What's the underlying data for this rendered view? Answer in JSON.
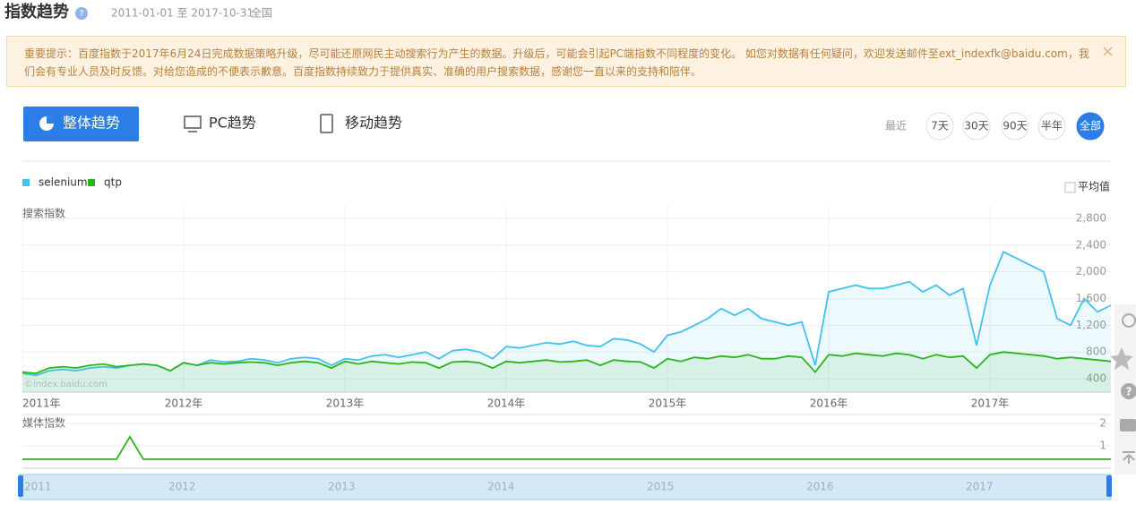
{
  "header": {
    "title": "指数趋势",
    "date_range": "2011-01-01 至 2017-10-31",
    "region": "全国"
  },
  "notice": {
    "text": "重要提示：百度指数于2017年6月24日完成数据策略升级，尽可能还原网民主动搜索行为产生的数据。升级后，可能会引起PC端指数不同程度的变化。 如您对数据有任何疑问，欢迎发送邮件至ext_indexfk@baidu.com，我们会有专业人员及时反馈。对给您造成的不便表示歉意。百度指数持续致力于提供真实、准确的用户搜索数据，感谢您一直以来的支持和陪伴。",
    "close": "×"
  },
  "tabs": [
    "整体趋势",
    "PC趋势",
    "移动趋势"
  ],
  "period": {
    "label": "最近",
    "options": [
      "7天",
      "30天",
      "90天",
      "半年",
      "全部"
    ],
    "selected": 4
  },
  "average_toggle": "平均值",
  "watermark": "©index.baidu.com",
  "slider_labels": [
    "2011",
    "2012",
    "2013",
    "2014",
    "2015",
    "2016",
    "2017"
  ],
  "chart_data": [
    {
      "type": "line",
      "y_label": "搜索指数",
      "categories": [
        "2011年",
        null,
        null,
        null,
        null,
        null,
        null,
        null,
        null,
        null,
        null,
        null,
        "2012年",
        null,
        null,
        null,
        null,
        null,
        null,
        null,
        null,
        null,
        null,
        null,
        "2013年",
        null,
        null,
        null,
        null,
        null,
        null,
        null,
        null,
        null,
        null,
        null,
        "2014年",
        null,
        null,
        null,
        null,
        null,
        null,
        null,
        null,
        null,
        null,
        null,
        "2015年",
        null,
        null,
        null,
        null,
        null,
        null,
        null,
        null,
        null,
        null,
        null,
        "2016年",
        null,
        null,
        null,
        null,
        null,
        null,
        null,
        null,
        null,
        null,
        null,
        "2017年",
        null,
        null,
        null,
        null,
        null,
        null,
        null,
        null,
        null
      ],
      "series": [
        {
          "name": "selenium",
          "color": "#41c1ee",
          "values": [
            480,
            450,
            520,
            540,
            520,
            560,
            580,
            560,
            600,
            620,
            600,
            520,
            640,
            600,
            680,
            650,
            660,
            700,
            680,
            640,
            700,
            720,
            700,
            600,
            700,
            680,
            740,
            760,
            720,
            760,
            800,
            700,
            820,
            840,
            800,
            700,
            880,
            860,
            900,
            940,
            920,
            960,
            900,
            880,
            1000,
            980,
            920,
            800,
            1050,
            1100,
            1200,
            1300,
            1450,
            1350,
            1450,
            1300,
            1250,
            1200,
            1250,
            600,
            1700,
            1750,
            1800,
            1750,
            1750,
            1800,
            1850,
            1700,
            1800,
            1650,
            1750,
            900,
            1800,
            2300,
            2200,
            2100,
            2000,
            1300,
            1200,
            1600,
            1400,
            1500
          ]
        },
        {
          "name": "qtp",
          "color": "#2bb51a",
          "values": [
            500,
            480,
            560,
            580,
            560,
            600,
            620,
            580,
            600,
            620,
            600,
            520,
            640,
            600,
            640,
            620,
            640,
            650,
            640,
            600,
            640,
            660,
            640,
            560,
            660,
            620,
            660,
            640,
            620,
            650,
            640,
            560,
            650,
            660,
            640,
            560,
            660,
            640,
            660,
            680,
            650,
            660,
            680,
            600,
            680,
            660,
            650,
            560,
            700,
            660,
            720,
            700,
            740,
            720,
            760,
            700,
            700,
            740,
            720,
            500,
            760,
            740,
            780,
            760,
            740,
            780,
            760,
            700,
            760,
            720,
            740,
            560,
            760,
            800,
            780,
            760,
            740,
            700,
            720,
            700,
            680,
            660
          ]
        }
      ],
      "ylim": [
        200,
        3000
      ],
      "yticks": [
        {
          "value": 2800,
          "label": "2,800"
        },
        {
          "value": 2400,
          "label": "2,400"
        },
        {
          "value": 2000,
          "label": "2,000"
        },
        {
          "value": 1600,
          "label": "1,600"
        },
        {
          "value": 1200,
          "label": "1,200"
        },
        800,
        400
      ],
      "grid": true
    },
    {
      "type": "line",
      "y_label": "媒体指数",
      "series": [
        {
          "color": "#2bb51a",
          "values": [
            0.4,
            0.4,
            0.4,
            0.4,
            0.4,
            0.4,
            0.4,
            0.4,
            1.4,
            0.4,
            0.4,
            0.4,
            0.4,
            0.4,
            0.4,
            0.4,
            0.4,
            0.4,
            0.4,
            0.4,
            0.4,
            0.4,
            0.4,
            0.4,
            0.4,
            0.4,
            0.4,
            0.4,
            0.4,
            0.4,
            0.4,
            0.4,
            0.4,
            0.4,
            0.4,
            0.4,
            0.4,
            0.4,
            0.4,
            0.4,
            0.4,
            0.4,
            0.4,
            0.4,
            0.4,
            0.4,
            0.4,
            0.4,
            0.4,
            0.4,
            0.4,
            0.4,
            0.4,
            0.4,
            0.4,
            0.4,
            0.4,
            0.4,
            0.4,
            0.4,
            0.4,
            0.4,
            0.4,
            0.4,
            0.4,
            0.4,
            0.4,
            0.4,
            0.4,
            0.4,
            0.4,
            0.4,
            0.4,
            0.4,
            0.4,
            0.4,
            0.4,
            0.4,
            0.4,
            0.4,
            0.4,
            0.4
          ]
        }
      ],
      "ylim": [
        0,
        2
      ],
      "yticks": [
        2,
        1
      ],
      "grid": true
    }
  ]
}
